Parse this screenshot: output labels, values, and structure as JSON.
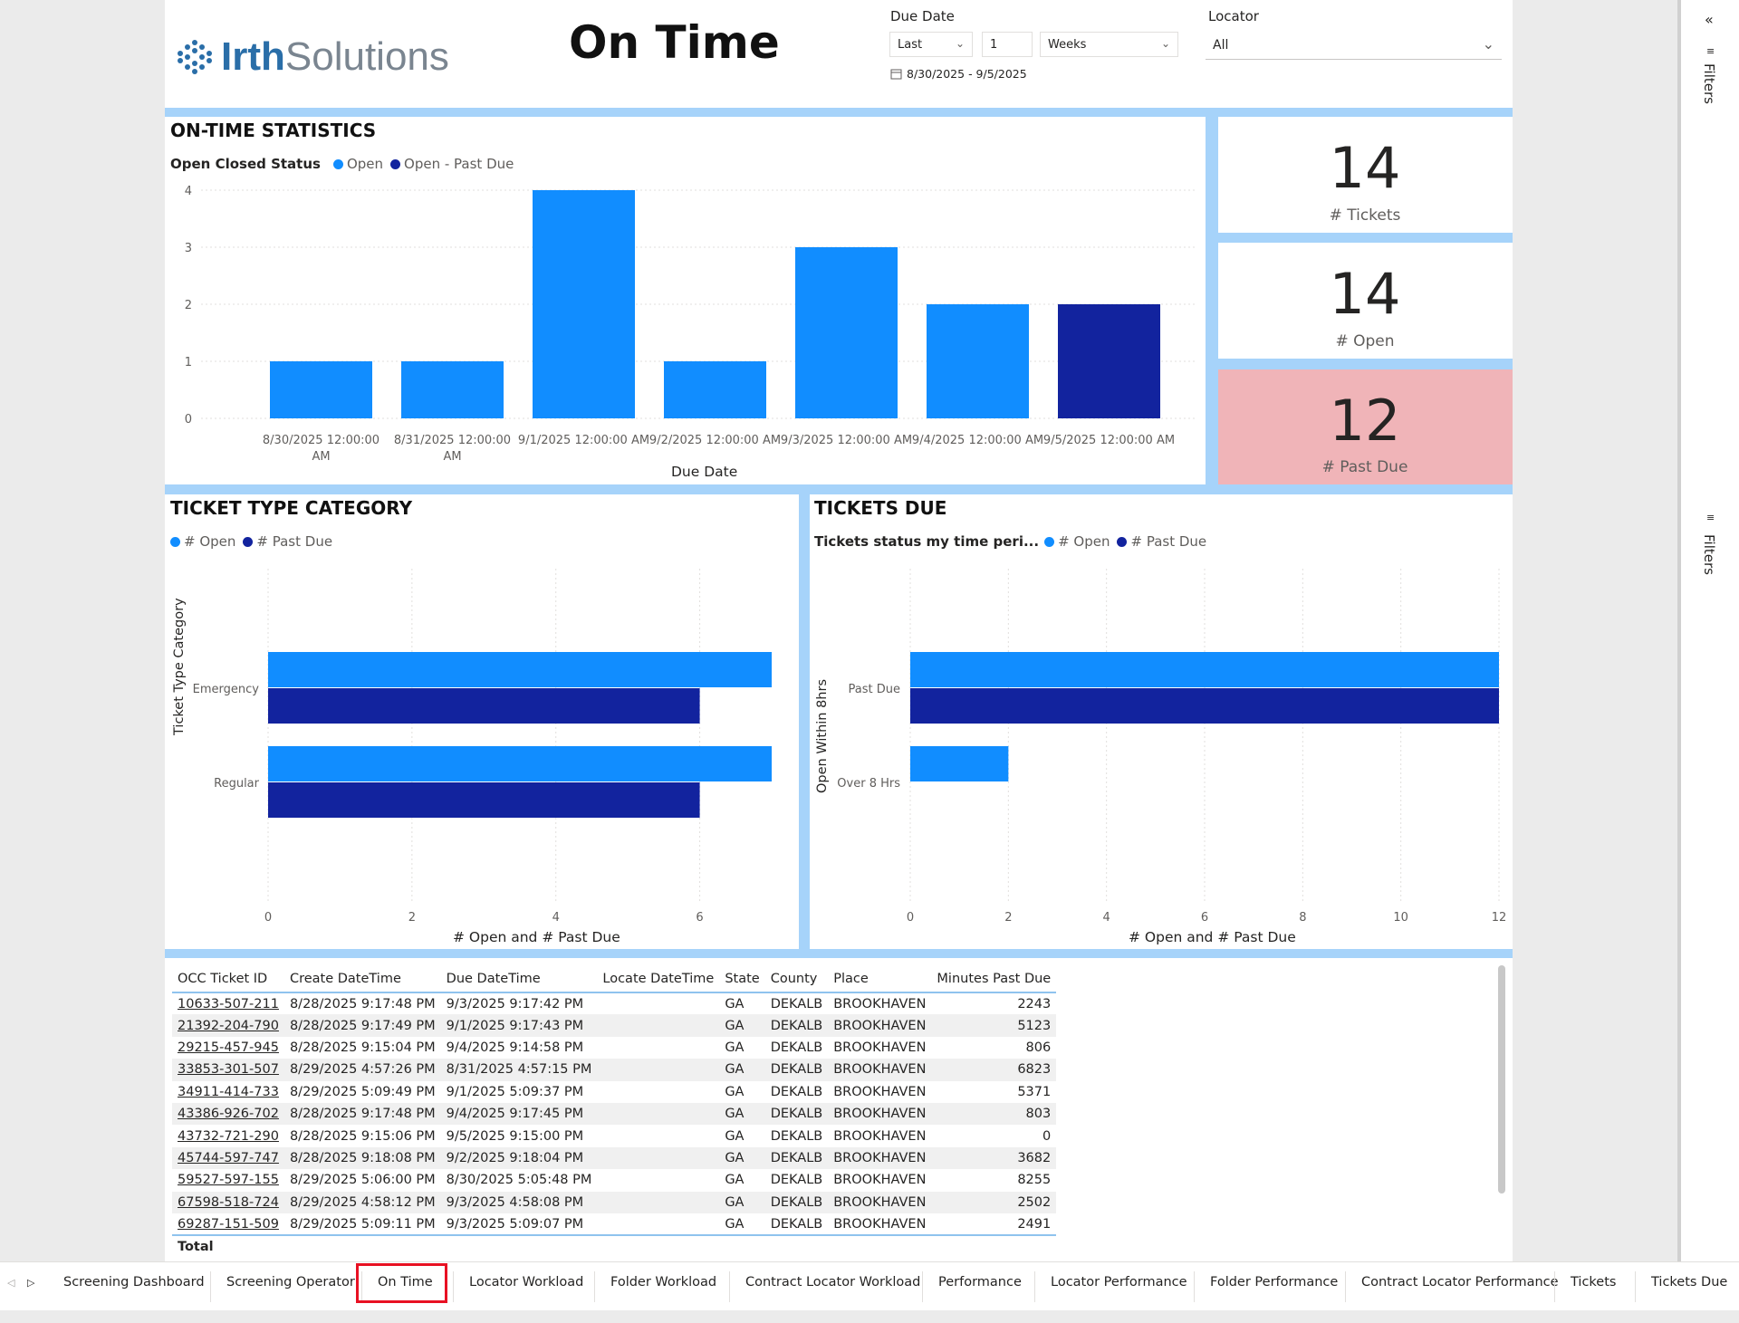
{
  "header": {
    "report_title": "On Time",
    "logo_text_bold": "Irth",
    "logo_text_light": "Solutions"
  },
  "filters": {
    "due_date_label": "Due Date",
    "relative_mode": "Last",
    "relative_count": "1",
    "relative_unit": "Weeks",
    "date_range": "8/30/2025 - 9/5/2025",
    "locator_label": "Locator",
    "locator_value": "All"
  },
  "on_time_stats": {
    "title": "ON-TIME STATISTICS",
    "legend_title": "Open Closed Status",
    "legend": [
      "Open",
      "Open - Past Due"
    ],
    "xlabel": "Due Date"
  },
  "cards": [
    {
      "value": "14",
      "label": "# Tickets"
    },
    {
      "value": "14",
      "label": "# Open"
    },
    {
      "value": "12",
      "label": "# Past Due"
    }
  ],
  "ticket_type": {
    "title": "TICKET TYPE CATEGORY",
    "legend": [
      "# Open",
      "# Past Due"
    ],
    "ylabel": "Ticket Type Category",
    "xlabel": "# Open and # Past Due"
  },
  "tickets_due": {
    "title": "TICKETS DUE",
    "legend_title": "Tickets status my time peri...",
    "legend": [
      "# Open",
      "# Past Due"
    ],
    "ylabel": "Open Within 8hrs",
    "xlabel": "# Open and # Past Due"
  },
  "colors": {
    "open": "#118dff",
    "past_due": "#12239e",
    "past_due_card": "#f0b4b8",
    "separator": "#a6d3fa"
  },
  "chart_data": [
    {
      "type": "bar",
      "title": "ON-TIME STATISTICS",
      "xlabel": "Due Date",
      "ylabel": "",
      "categories": [
        "8/30/2025 12:00:00 AM",
        "8/31/2025 12:00:00 AM",
        "9/1/2025 12:00:00 AM",
        "9/2/2025 12:00:00 AM",
        "9/3/2025 12:00:00 AM",
        "9/4/2025 12:00:00 AM",
        "9/5/2025 12:00:00 AM"
      ],
      "tick_lines": [
        [
          "8/30/2025 12:00:00",
          "AM"
        ],
        [
          "8/31/2025 12:00:00",
          "AM"
        ],
        [
          "9/1/2025 12:00:00 AM"
        ],
        [
          "9/2/2025 12:00:00 AM"
        ],
        [
          "9/3/2025 12:00:00 AM"
        ],
        [
          "9/4/2025 12:00:00 AM"
        ],
        [
          "9/5/2025 12:00:00 AM"
        ]
      ],
      "values": [
        1,
        1,
        4,
        1,
        3,
        2,
        2
      ],
      "series_of_bar": [
        "Open",
        "Open",
        "Open",
        "Open",
        "Open",
        "Open",
        "Open - Past Due"
      ],
      "yticks": [
        0,
        1,
        2,
        3,
        4
      ],
      "ylim": [
        0,
        4
      ],
      "grid": true,
      "legend": "top-left"
    },
    {
      "type": "bar",
      "orientation": "horizontal",
      "title": "TICKET TYPE CATEGORY",
      "xlabel": "# Open and # Past Due",
      "ylabel": "Ticket Type Category",
      "categories": [
        "Emergency",
        "Regular"
      ],
      "series": [
        {
          "name": "# Open",
          "values": [
            7,
            7
          ]
        },
        {
          "name": "# Past Due",
          "values": [
            6,
            6
          ]
        }
      ],
      "xticks": [
        0,
        2,
        4,
        6
      ],
      "xlim": [
        0,
        7
      ],
      "grid": true,
      "legend": "top-left"
    },
    {
      "type": "bar",
      "orientation": "horizontal",
      "title": "TICKETS DUE",
      "xlabel": "# Open and # Past Due",
      "ylabel": "Open Within 8hrs",
      "categories": [
        "Past Due",
        "Over 8 Hrs"
      ],
      "series": [
        {
          "name": "# Open",
          "values": [
            12,
            2
          ]
        },
        {
          "name": "# Past Due",
          "values": [
            12,
            0
          ]
        }
      ],
      "xticks": [
        0,
        2,
        4,
        6,
        8,
        10,
        12
      ],
      "xlim": [
        0,
        12
      ],
      "grid": true,
      "legend": "top-left"
    }
  ],
  "table": {
    "columns": [
      "OCC Ticket ID",
      "Create DateTime",
      "Due DateTime",
      "Locate DateTime",
      "State",
      "County",
      "Place",
      "Minutes Past Due"
    ],
    "rows": [
      [
        "10633-507-211",
        "8/28/2025 9:17:48 PM",
        "9/3/2025 9:17:42 PM",
        "",
        "GA",
        "DEKALB",
        "BROOKHAVEN",
        "2243"
      ],
      [
        "21392-204-790",
        "8/28/2025 9:17:49 PM",
        "9/1/2025 9:17:43 PM",
        "",
        "GA",
        "DEKALB",
        "BROOKHAVEN",
        "5123"
      ],
      [
        "29215-457-945",
        "8/28/2025 9:15:04 PM",
        "9/4/2025 9:14:58 PM",
        "",
        "GA",
        "DEKALB",
        "BROOKHAVEN",
        "806"
      ],
      [
        "33853-301-507",
        "8/29/2025 4:57:26 PM",
        "8/31/2025 4:57:15 PM",
        "",
        "GA",
        "DEKALB",
        "BROOKHAVEN",
        "6823"
      ],
      [
        "34911-414-733",
        "8/29/2025 5:09:49 PM",
        "9/1/2025 5:09:37 PM",
        "",
        "GA",
        "DEKALB",
        "BROOKHAVEN",
        "5371"
      ],
      [
        "43386-926-702",
        "8/28/2025 9:17:48 PM",
        "9/4/2025 9:17:45 PM",
        "",
        "GA",
        "DEKALB",
        "BROOKHAVEN",
        "803"
      ],
      [
        "43732-721-290",
        "8/28/2025 9:15:06 PM",
        "9/5/2025 9:15:00 PM",
        "",
        "GA",
        "DEKALB",
        "BROOKHAVEN",
        "0"
      ],
      [
        "45744-597-747",
        "8/28/2025 9:18:08 PM",
        "9/2/2025 9:18:04 PM",
        "",
        "GA",
        "DEKALB",
        "BROOKHAVEN",
        "3682"
      ],
      [
        "59527-597-155",
        "8/29/2025 5:06:00 PM",
        "8/30/2025 5:05:48 PM",
        "",
        "GA",
        "DEKALB",
        "BROOKHAVEN",
        "8255"
      ],
      [
        "67598-518-724",
        "8/29/2025 4:58:12 PM",
        "9/3/2025 4:58:08 PM",
        "",
        "GA",
        "DEKALB",
        "BROOKHAVEN",
        "2502"
      ],
      [
        "69287-151-509",
        "8/29/2025 5:09:11 PM",
        "9/3/2025 5:09:07 PM",
        "",
        "GA",
        "DEKALB",
        "BROOKHAVEN",
        "2491"
      ]
    ],
    "total_label": "Total"
  },
  "tabs": [
    "Screening Dashboard",
    "Screening Operator",
    "On Time",
    "Locator Workload",
    "Folder Workload",
    "Contract Locator Workload",
    "Performance",
    "Locator Performance",
    "Folder Performance",
    "Contract Locator Performance",
    "Tickets",
    "Tickets Due"
  ],
  "active_tab": "On Time",
  "side_pane": {
    "label": "Filters",
    "label2": "Filters",
    "collapse_glyph": "«"
  }
}
